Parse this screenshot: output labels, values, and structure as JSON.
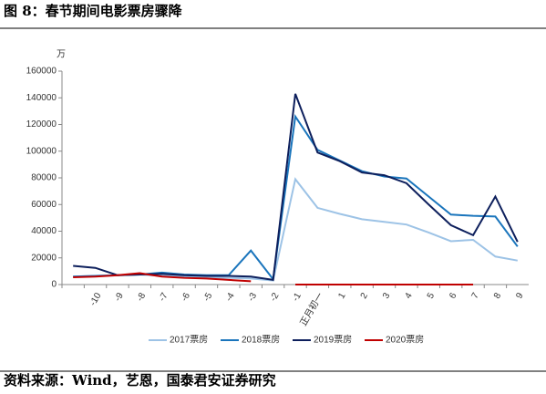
{
  "title": "图 8：春节期间电影票房骤降",
  "source": "资料来源：Wind，艺恩，国泰君安证券研究",
  "chart_data": {
    "type": "line",
    "y_unit": "万",
    "categories": [
      null,
      "-10",
      "-9",
      "-8",
      "-7",
      "-6",
      "-5",
      "-4",
      "-3",
      "-2",
      "-1",
      "正月初一",
      "1",
      "2",
      "3",
      "4",
      "5",
      "6",
      "7",
      "8",
      "9"
    ],
    "series": [
      {
        "name": "2017票房",
        "color": "#9dc3e6",
        "values": [
          6000,
          6500,
          7000,
          7500,
          6500,
          6000,
          5500,
          5000,
          4500,
          3000,
          79000,
          57500,
          53000,
          49000,
          47000,
          45000,
          39000,
          32500,
          33500,
          21000,
          18000
        ]
      },
      {
        "name": "2018票房",
        "color": "#1a75bc",
        "values": [
          6000,
          6500,
          7000,
          7500,
          9000,
          7500,
          7000,
          7000,
          25500,
          4000,
          126000,
          101000,
          93000,
          85000,
          81000,
          79500,
          66000,
          52500,
          51500,
          51000,
          28500
        ]
      },
      {
        "name": "2019票房",
        "color": "#0d1f5c",
        "values": [
          14000,
          12500,
          7000,
          7500,
          8000,
          7000,
          6500,
          6500,
          6000,
          3500,
          143000,
          99000,
          92500,
          84000,
          82000,
          76000,
          60000,
          44500,
          37000,
          66000,
          32000
        ]
      },
      {
        "name": "2020票房",
        "color": "#c00000",
        "values": [
          5500,
          6000,
          7000,
          8500,
          6000,
          5000,
          4500,
          3500,
          2500,
          null,
          0,
          0,
          0,
          0,
          0,
          0,
          0,
          0,
          0,
          null,
          null
        ]
      }
    ],
    "ylim": [
      0,
      160000
    ],
    "yticks": [
      0,
      20000,
      40000,
      60000,
      80000,
      100000,
      120000,
      140000,
      160000
    ]
  }
}
